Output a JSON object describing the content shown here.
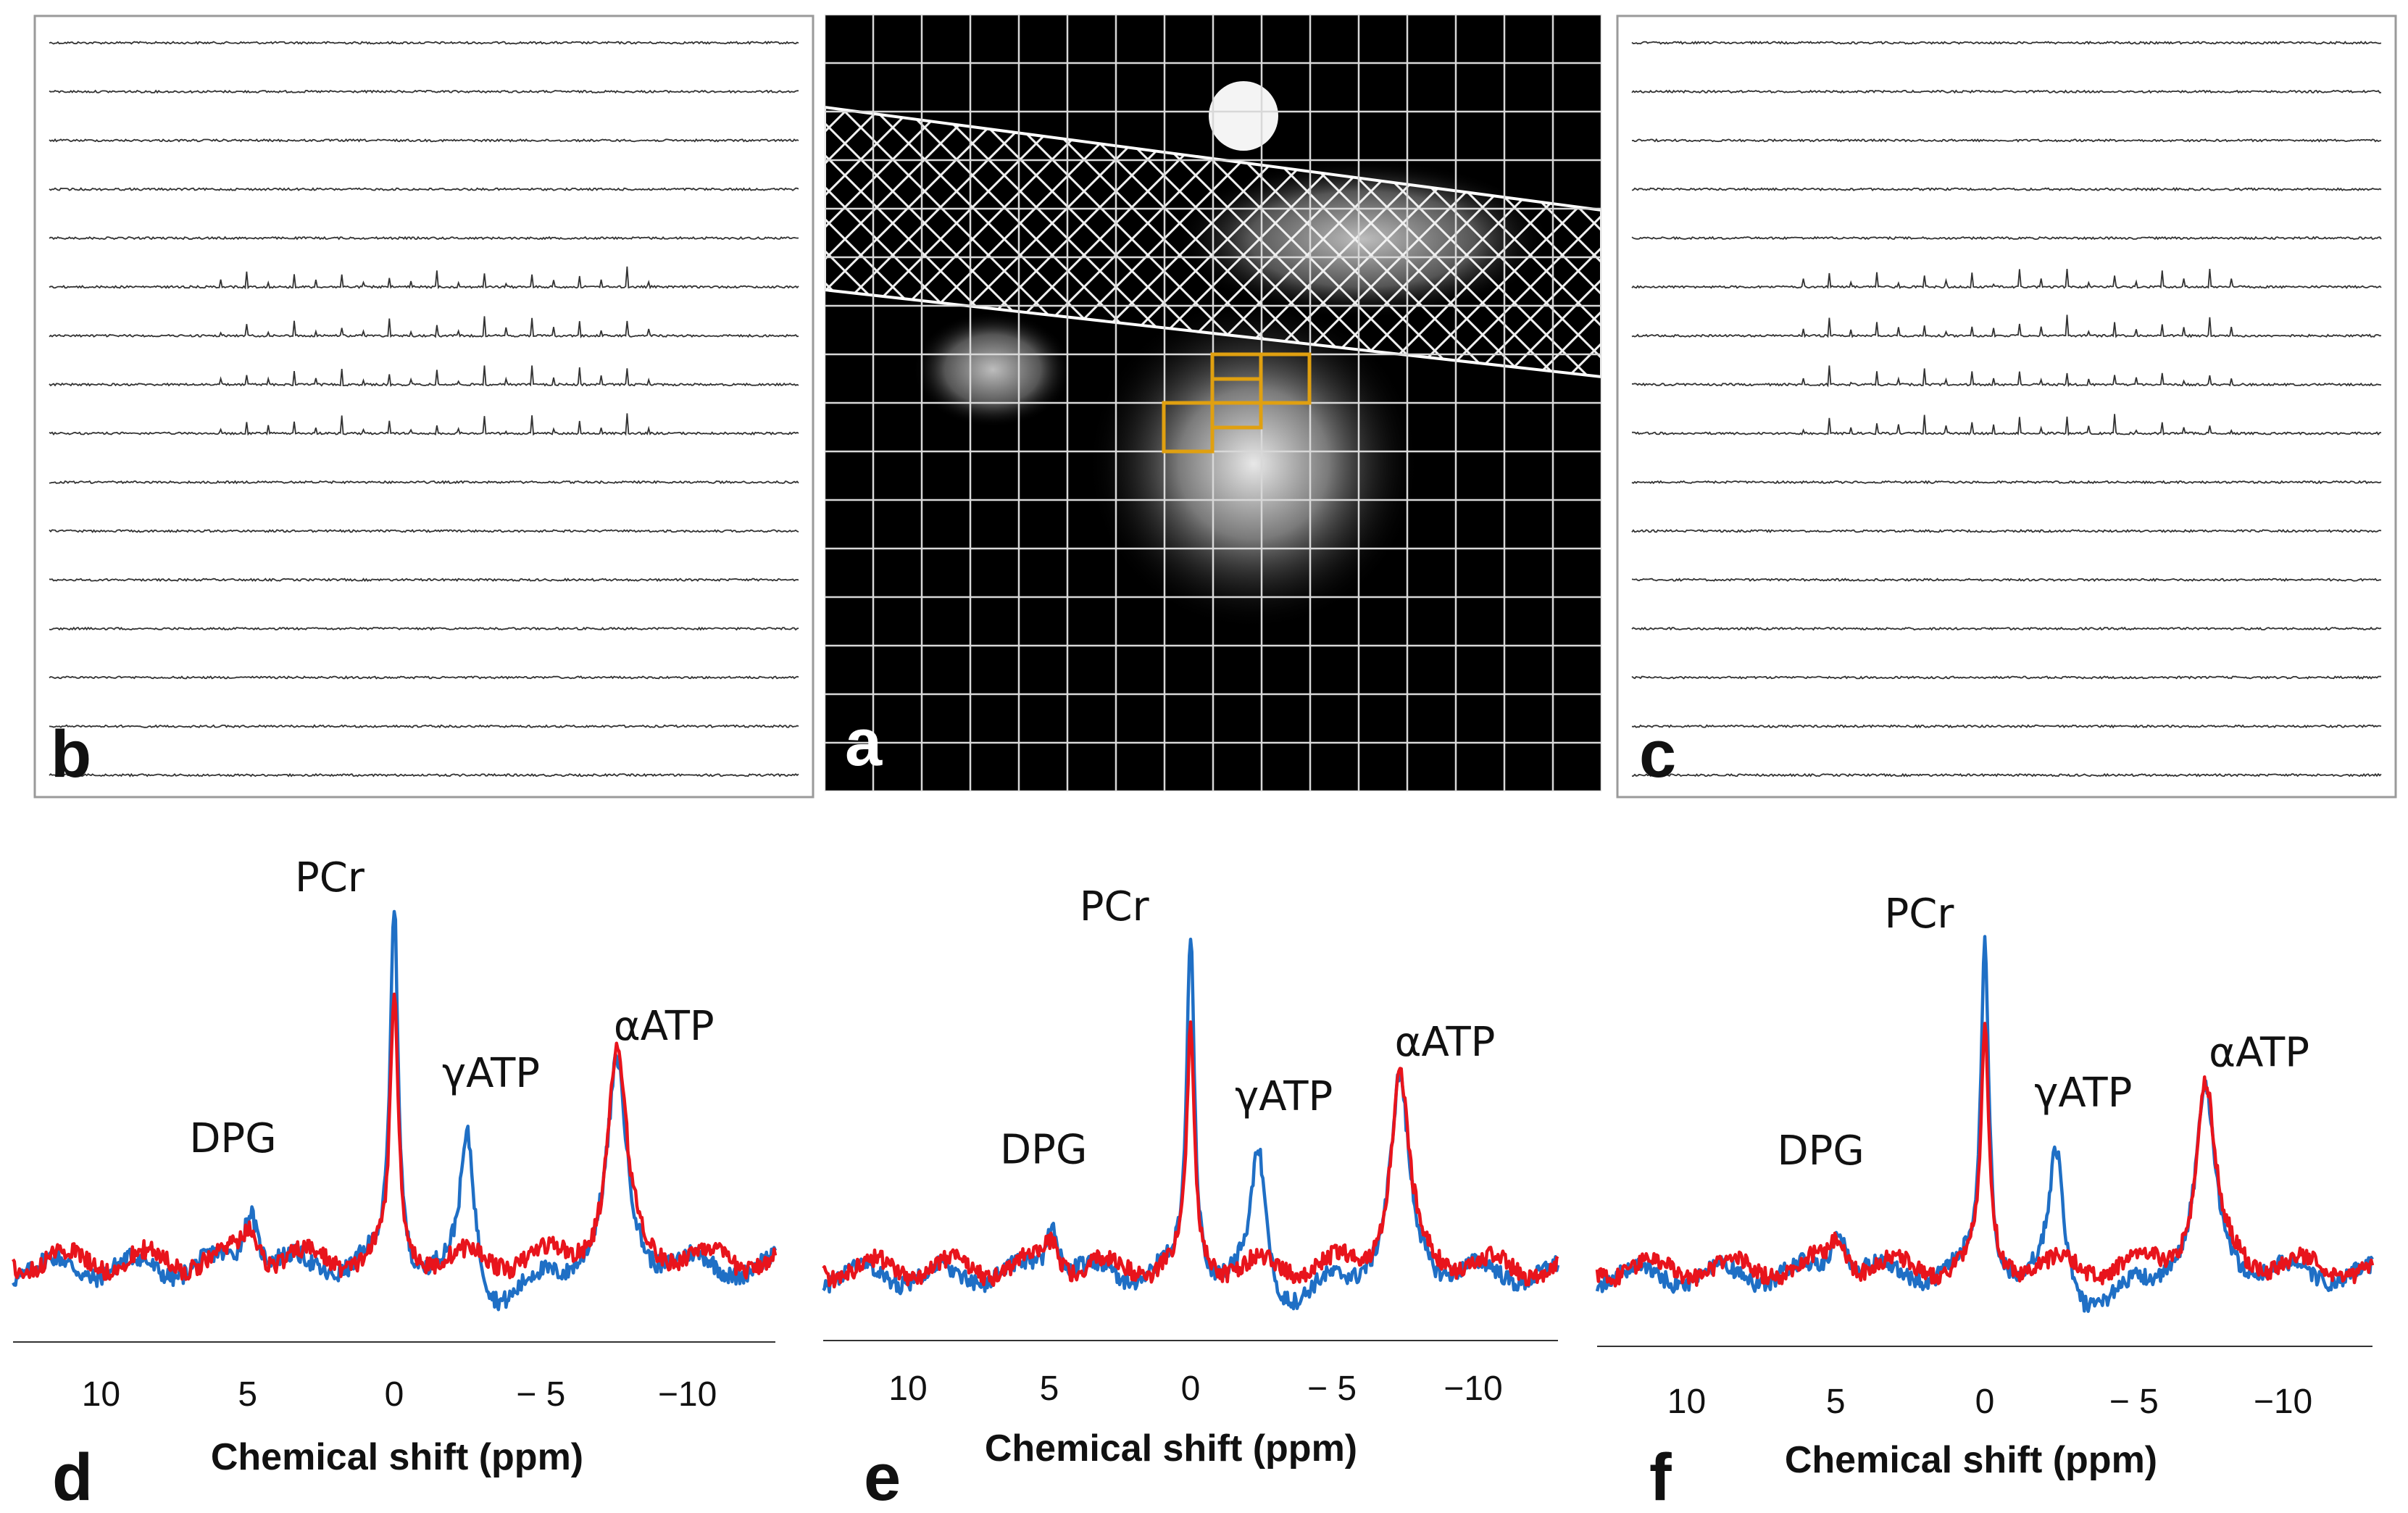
{
  "figure": {
    "panel_letters": {
      "a": "a",
      "b": "b",
      "c": "c",
      "d": "d",
      "e": "e",
      "f": "f"
    },
    "colors": {
      "blue": "#1f6fc5",
      "red": "#e8141c",
      "grid": "#d8d8d8",
      "voxel": "#e0a010"
    },
    "grid_panels": {
      "rows": 16,
      "cols": 16
    }
  },
  "chart_data": [
    {
      "panel": "d",
      "type": "line",
      "xlabel": "Chemical shift (ppm)",
      "xlim": [
        13,
        -13
      ],
      "xticks": [
        10,
        5,
        0,
        -5,
        -10
      ],
      "xtick_labels": [
        "10",
        "5",
        "0",
        "− 5",
        "−10"
      ],
      "annotations": [
        {
          "text": "DPG",
          "x": 5.5
        },
        {
          "text": "PCr",
          "x": 2.2
        },
        {
          "text": "γATP",
          "x": -3.3
        },
        {
          "text": "αATP",
          "x": -9.2
        }
      ],
      "series": [
        {
          "color": "blue",
          "baseline": 0,
          "peaks": [
            [
              4.9,
              0.18,
              0.3
            ],
            [
              0,
              1.0,
              0.16
            ],
            [
              -2.5,
              0.42,
              0.3
            ],
            [
              -7.6,
              0.55,
              0.38
            ]
          ],
          "dip": -0.1
        },
        {
          "color": "red",
          "baseline": 0.02,
          "peaks": [
            [
              4.9,
              0.1,
              0.32
            ],
            [
              0,
              0.72,
              0.16
            ],
            [
              -7.6,
              0.57,
              0.38
            ]
          ],
          "dip": 0.0
        }
      ]
    },
    {
      "panel": "e",
      "type": "line",
      "xlabel": "Chemical shift (ppm)",
      "xlim": [
        13,
        -13
      ],
      "xticks": [
        10,
        5,
        0,
        -5,
        -10
      ],
      "xtick_labels": [
        "10",
        "5",
        "0",
        "− 5",
        "−10"
      ],
      "annotations": [
        {
          "text": "DPG",
          "x": 5.2
        },
        {
          "text": "PCr",
          "x": 2.7
        },
        {
          "text": "γATP",
          "x": -3.3
        },
        {
          "text": "αATP",
          "x": -9.0
        }
      ],
      "series": [
        {
          "color": "blue",
          "baseline": 0,
          "peaks": [
            [
              4.9,
              0.16,
              0.3
            ],
            [
              0,
              1.0,
              0.16
            ],
            [
              -2.4,
              0.4,
              0.3
            ],
            [
              -7.4,
              0.56,
              0.38
            ]
          ],
          "dip": -0.08
        },
        {
          "color": "red",
          "baseline": 0.02,
          "peaks": [
            [
              4.9,
              0.09,
              0.32
            ],
            [
              0,
              0.68,
              0.16
            ],
            [
              -7.4,
              0.57,
              0.38
            ]
          ],
          "dip": 0.0
        }
      ]
    },
    {
      "panel": "f",
      "type": "line",
      "xlabel": "Chemical shift (ppm)",
      "xlim": [
        13,
        -13
      ],
      "xticks": [
        10,
        5,
        0,
        -5,
        -10
      ],
      "xtick_labels": [
        "10",
        "5",
        "0",
        "− 5",
        "−10"
      ],
      "annotations": [
        {
          "text": "DPG",
          "x": 5.5
        },
        {
          "text": "PCr",
          "x": 2.2
        },
        {
          "text": "γATP",
          "x": -3.3
        },
        {
          "text": "αATP",
          "x": -9.2
        }
      ],
      "series": [
        {
          "color": "blue",
          "baseline": 0,
          "peaks": [
            [
              4.9,
              0.16,
              0.3
            ],
            [
              0,
              1.0,
              0.16
            ],
            [
              -2.4,
              0.42,
              0.3
            ],
            [
              -7.4,
              0.54,
              0.38
            ]
          ],
          "dip": -0.1
        },
        {
          "color": "red",
          "baseline": 0.02,
          "peaks": [
            [
              4.9,
              0.1,
              0.32
            ],
            [
              0,
              0.7,
              0.16
            ],
            [
              -7.4,
              0.55,
              0.38
            ]
          ],
          "dip": 0.0
        }
      ]
    }
  ]
}
